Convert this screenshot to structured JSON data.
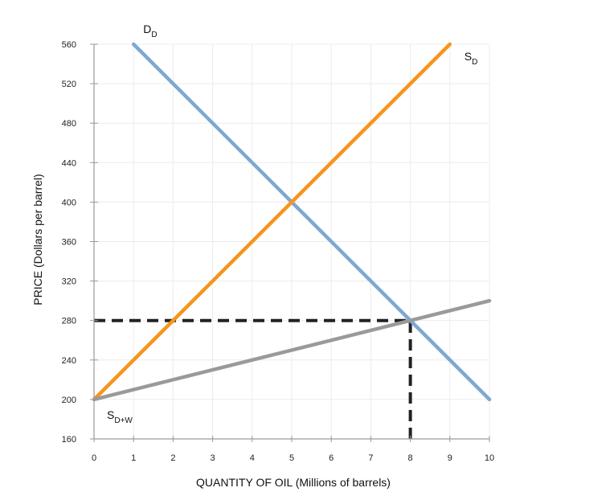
{
  "chart_data": {
    "type": "line",
    "xlabel": "QUANTITY OF OIL (Millions of barrels)",
    "ylabel": "PRICE (Dollars per barrel)",
    "xlim": [
      0,
      10
    ],
    "ylim": [
      160,
      560
    ],
    "xticks": [
      "0",
      "1",
      "2",
      "3",
      "4",
      "5",
      "6",
      "7",
      "8",
      "9",
      "10"
    ],
    "yticks": [
      "160",
      "200",
      "240",
      "280",
      "320",
      "360",
      "400",
      "440",
      "480",
      "520",
      "560"
    ],
    "grid": true,
    "series": [
      {
        "key": "demand",
        "label_main": "D",
        "label_sub": "D",
        "color": "#7ea8d4",
        "x": [
          1,
          10
        ],
        "y": [
          560,
          200
        ]
      },
      {
        "key": "supply_domestic",
        "label_main": "S",
        "label_sub": "D",
        "color": "#f7941d",
        "x": [
          0,
          9
        ],
        "y": [
          200,
          560
        ]
      },
      {
        "key": "supply_world",
        "label_main": "S",
        "label_sub": "D+W",
        "color": "#9a9a9a",
        "x": [
          0,
          10
        ],
        "y": [
          200,
          300
        ]
      }
    ],
    "reference_lines": [
      {
        "orientation": "horizontal",
        "from": [
          0,
          280
        ],
        "to": [
          8,
          280
        ],
        "color": "#222222",
        "style": "dashed"
      },
      {
        "orientation": "vertical",
        "from": [
          8,
          160
        ],
        "to": [
          8,
          280
        ],
        "color": "#222222",
        "style": "dashed"
      }
    ]
  }
}
